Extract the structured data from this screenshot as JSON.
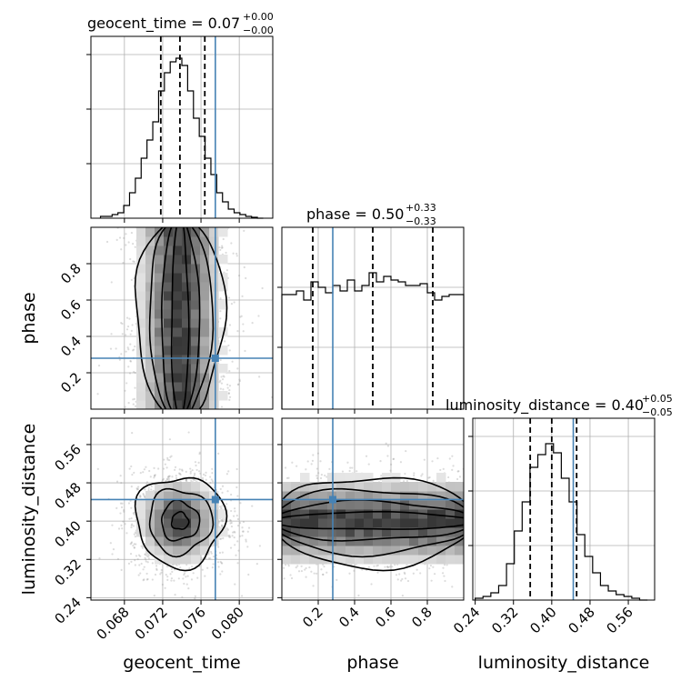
{
  "chart_data": {
    "type": "corner",
    "parameters": [
      "geocent_time",
      "phase",
      "luminosity_distance"
    ],
    "truth_color": "#4682b4",
    "truths": {
      "geocent_time": 0.0775,
      "phase": 0.28,
      "luminosity_distance": 0.445
    },
    "ranges": {
      "geocent_time": [
        0.0645,
        0.0835
      ],
      "phase": [
        0.0,
        1.0
      ],
      "luminosity_distance": [
        0.235,
        0.615
      ]
    },
    "ticks": {
      "geocent_time": [
        0.068,
        0.072,
        0.076,
        0.08
      ],
      "phase_x": [
        0.2,
        0.4,
        0.6,
        0.8
      ],
      "phase_y": [
        0.2,
        0.4,
        0.6,
        0.8
      ],
      "luminosity_distance_x": [
        0.24,
        0.32,
        0.4,
        0.48,
        0.56
      ],
      "luminosity_distance_y": [
        0.24,
        0.32,
        0.4,
        0.48,
        0.56
      ]
    },
    "tick_labels": {
      "geocent_time": [
        "0.068",
        "0.072",
        "0.076",
        "0.080"
      ],
      "phase": [
        "0.2",
        "0.4",
        "0.6",
        "0.8"
      ],
      "luminosity_distance": [
        "0.24",
        "0.32",
        "0.40",
        "0.48",
        "0.56"
      ]
    },
    "axis_labels": {
      "geocent_time": "geocent_time",
      "phase": "phase",
      "luminosity_distance": "luminosity_distance"
    },
    "titles": {
      "geocent_time": {
        "main": "geocent_time = 0.07",
        "upper": "+0.00",
        "lower": "−0.00"
      },
      "phase": {
        "main": "phase = 0.50",
        "upper": "+0.33",
        "lower": "−0.33"
      },
      "luminosity_distance": {
        "main": "luminosity_distance = 0.40",
        "upper": "+0.05",
        "lower": "−0.05"
      }
    },
    "quantiles": {
      "geocent_time": [
        0.0718,
        0.0738,
        0.0764
      ],
      "phase": [
        0.17,
        0.5,
        0.83
      ],
      "luminosity_distance": [
        0.355,
        0.4,
        0.452
      ]
    },
    "histograms": {
      "geocent_time": {
        "edges_range": [
          0.0655,
          0.0825
        ],
        "counts": [
          0.01,
          0.01,
          0.02,
          0.03,
          0.07,
          0.14,
          0.22,
          0.33,
          0.43,
          0.53,
          0.7,
          0.8,
          0.86,
          0.88,
          0.84,
          0.7,
          0.55,
          0.45,
          0.33,
          0.24,
          0.14,
          0.09,
          0.05,
          0.03,
          0.02,
          0.01,
          0.005,
          0.0
        ]
      },
      "phase": {
        "edges_range": [
          0.0,
          1.0
        ],
        "counts": [
          0.63,
          0.63,
          0.65,
          0.6,
          0.7,
          0.67,
          0.64,
          0.68,
          0.65,
          0.71,
          0.65,
          0.68,
          0.75,
          0.7,
          0.73,
          0.71,
          0.7,
          0.68,
          0.68,
          0.69,
          0.64,
          0.6,
          0.62,
          0.63,
          0.63
        ]
      },
      "luminosity_distance": {
        "edges_range": [
          0.24,
          0.6
        ],
        "counts": [
          0.01,
          0.02,
          0.04,
          0.08,
          0.2,
          0.38,
          0.54,
          0.73,
          0.8,
          0.86,
          0.81,
          0.67,
          0.54,
          0.36,
          0.24,
          0.15,
          0.08,
          0.05,
          0.03,
          0.02,
          0.01,
          0.0
        ]
      }
    }
  }
}
